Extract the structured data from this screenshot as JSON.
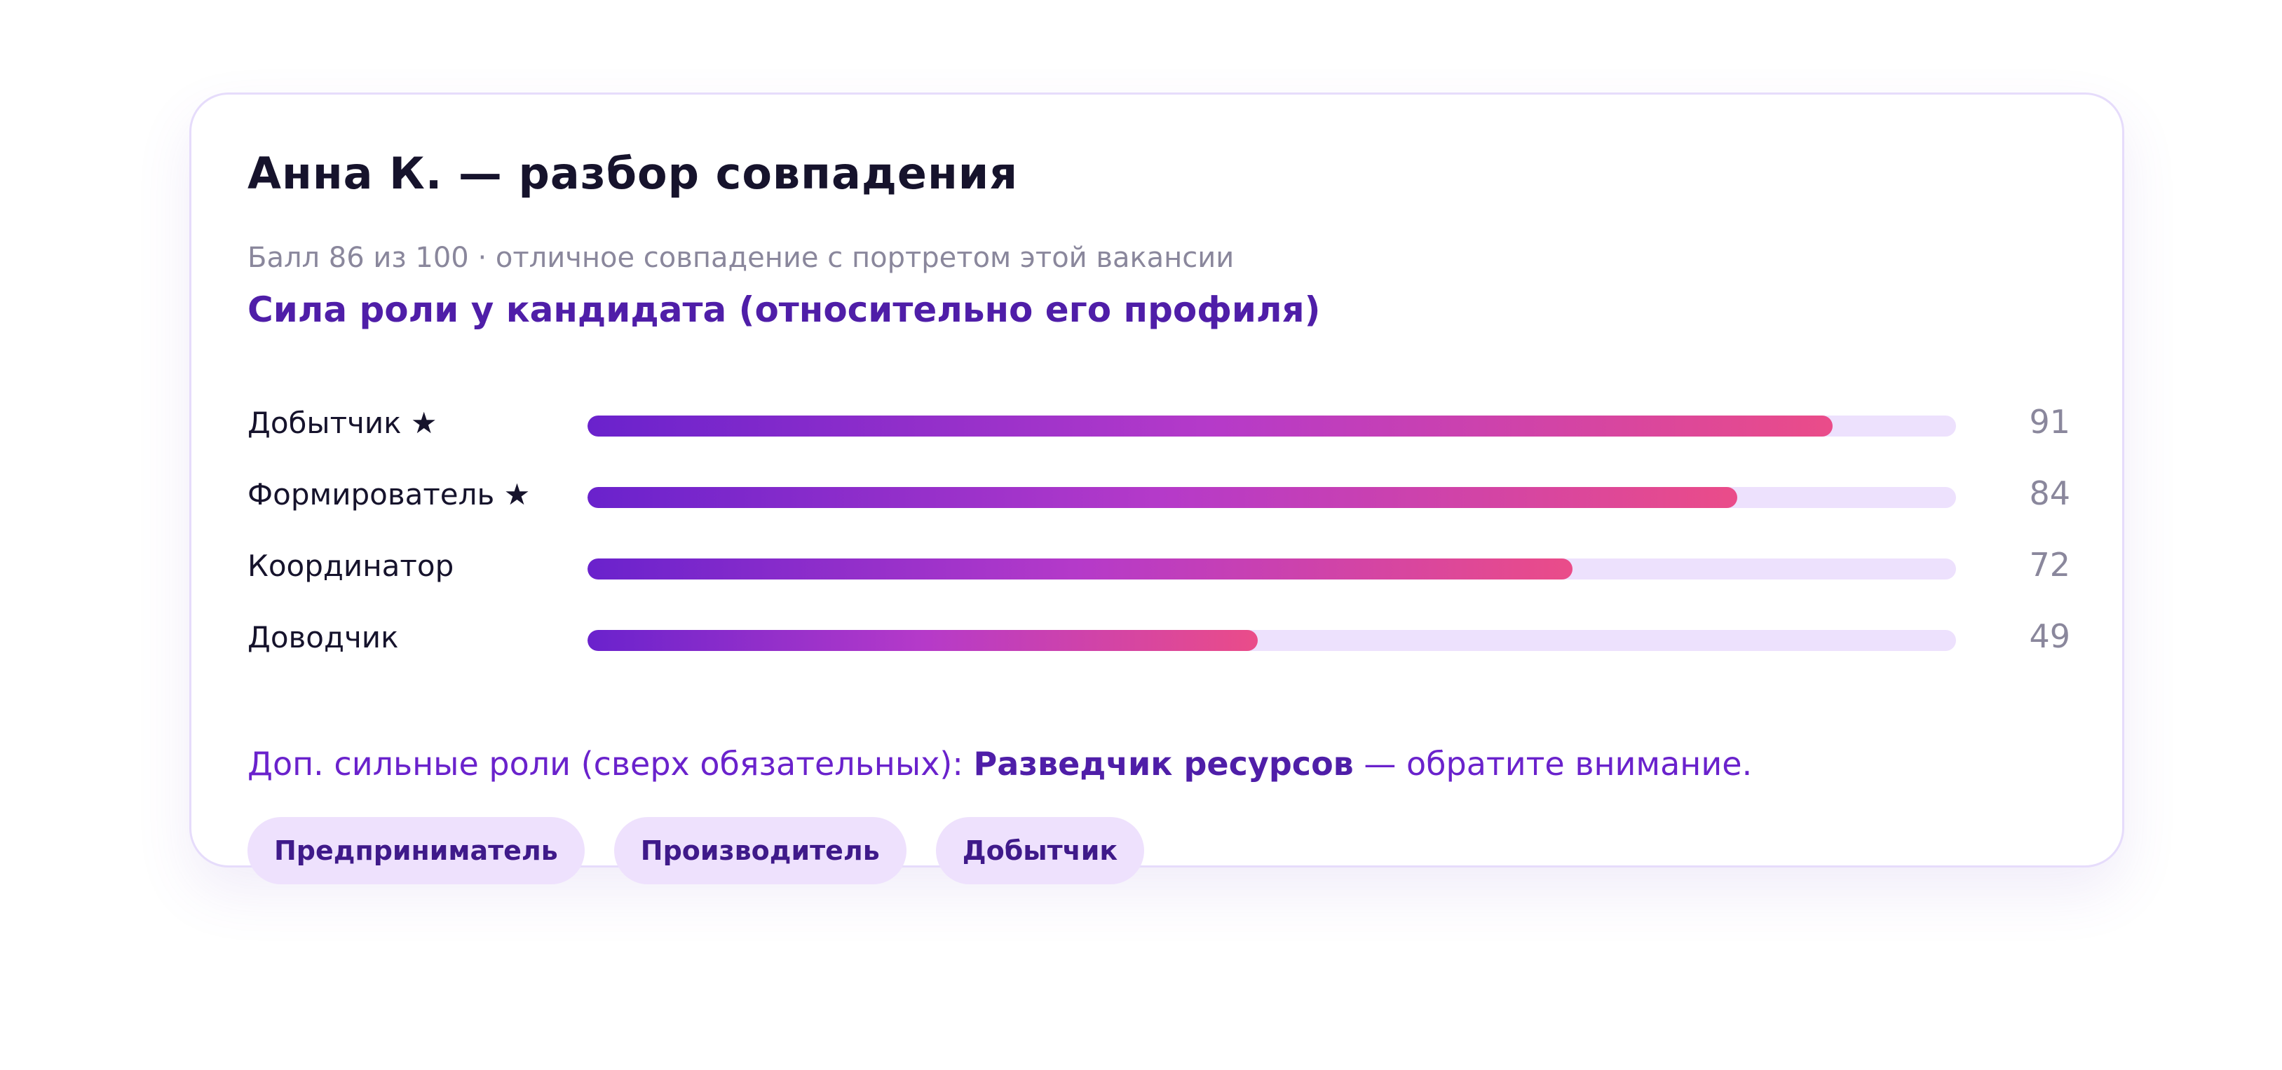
{
  "card": {
    "title": "Анна К. — разбор совпадения",
    "subtitle": "Балл 86 из 100 · отличное совпадение с портретом этой вакансии",
    "section_title": "Сила роли у кандидата (относительно его профиля)"
  },
  "roles": [
    {
      "label": "Добытчик ★",
      "value": 91
    },
    {
      "label": "Формирователь ★",
      "value": 84
    },
    {
      "label": "Координатор",
      "value": 72
    },
    {
      "label": "Доводчик",
      "value": 49
    }
  ],
  "extra": {
    "prefix": "Доп. сильные роли (сверх обязательных): ",
    "highlight": "Разведчик ресурсов",
    "suffix": " — обратите внимание."
  },
  "chips": [
    {
      "label": "Предприниматель"
    },
    {
      "label": "Производитель"
    },
    {
      "label": "Добытчик"
    }
  ],
  "colors": {
    "accent": "#6a22cc",
    "accent_dark": "#4f1ea8",
    "bar_end": "#ea4c89",
    "track": "#ede1fd",
    "chip_bg": "#eee1fd"
  }
}
